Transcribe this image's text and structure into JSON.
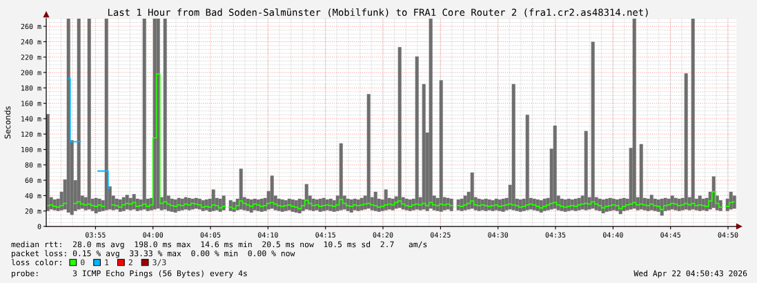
{
  "chart_data": {
    "type": "step",
    "title": "Last 1 Hour from Bad Soden-Salmünster (Mobilfunk) to FRA1 Core Router 2 (fra1.cr2.as48314.net)",
    "ylabel": "Seconds",
    "annotations": [
      "median rtt:  28.0 ms avg  198.0 ms max  14.6 ms min  20.5 ms now  10.5 ms sd  2.7   am/s",
      "packet loss: 0.15 % avg  33.33 % max  0.00 % min  0.00 % now",
      "loss color:",
      "probe:       3 ICMP Echo Pings (56 Bytes) every 4s",
      "Wed Apr 22 04:50:43 2026"
    ],
    "xlim": [
      3.8453,
      4.8453
    ],
    "xticks": [
      {
        "value": 3.9167,
        "label": "03:55"
      },
      {
        "value": 4.0,
        "label": "04:00"
      },
      {
        "value": 4.0833,
        "label": "04:05"
      },
      {
        "value": 4.1667,
        "label": "04:10"
      },
      {
        "value": 4.25,
        "label": "04:15"
      },
      {
        "value": 4.3333,
        "label": "04:20"
      },
      {
        "value": 4.4167,
        "label": "04:25"
      },
      {
        "value": 4.5,
        "label": "04:30"
      },
      {
        "value": 4.5833,
        "label": "04:35"
      },
      {
        "value": 4.6667,
        "label": "04:40"
      },
      {
        "value": 4.75,
        "label": "04:45"
      },
      {
        "value": 4.8333,
        "label": "04:50"
      }
    ],
    "ylim": [
      0,
      270
    ],
    "yticks": [
      0,
      {
        "value": 20,
        "label": "20 m"
      },
      {
        "value": 40,
        "label": "40 m"
      },
      {
        "value": 60,
        "label": "60 m"
      },
      {
        "value": 80,
        "label": "80 m"
      },
      {
        "value": 100,
        "label": "100 m"
      },
      {
        "value": 120,
        "label": "120 m"
      },
      {
        "value": 140,
        "label": "140 m"
      },
      {
        "value": 160,
        "label": "160 m"
      },
      {
        "value": 180,
        "label": "180 m"
      },
      {
        "value": 200,
        "label": "200 m"
      },
      {
        "value": 220,
        "label": "220 m"
      },
      {
        "value": 240,
        "label": "240 m"
      },
      {
        "value": 260,
        "label": "260 m"
      }
    ],
    "grid": true,
    "legend": "bottom",
    "x": [
      3.8475,
      3.8525,
      3.8575,
      3.8625,
      3.8675,
      3.8725,
      3.8775,
      3.8825,
      3.8875,
      3.8925,
      3.8975,
      3.9025,
      3.9075,
      3.9125,
      3.9175,
      3.9225,
      3.9275,
      3.9325,
      3.9375,
      3.9425,
      3.9475,
      3.9525,
      3.9575,
      3.9625,
      3.9675,
      3.9725,
      3.9775,
      3.9825,
      3.9875,
      3.9925,
      3.9975,
      4.0025,
      4.0075,
      4.0125,
      4.0175,
      4.0225,
      4.0275,
      4.0325,
      4.0375,
      4.0425,
      4.0475,
      4.0525,
      4.0575,
      4.0625,
      4.0675,
      4.0725,
      4.0775,
      4.0825,
      4.0875,
      4.0925,
      4.0975,
      4.1025,
      4.1075,
      4.1125,
      4.1175,
      4.1225,
      4.1275,
      4.1325,
      4.1375,
      4.1425,
      4.1475,
      4.1525,
      4.1575,
      4.1625,
      4.1675,
      4.1725,
      4.1775,
      4.1825,
      4.1875,
      4.1925,
      4.1975,
      4.2025,
      4.2075,
      4.2125,
      4.2175,
      4.2225,
      4.2275,
      4.2325,
      4.2375,
      4.2425,
      4.2475,
      4.2525,
      4.2575,
      4.2625,
      4.2675,
      4.2725,
      4.2775,
      4.2825,
      4.2875,
      4.2925,
      4.2975,
      4.3025,
      4.3075,
      4.3125,
      4.3175,
      4.3225,
      4.3275,
      4.3325,
      4.3375,
      4.3425,
      4.3475,
      4.3525,
      4.3575,
      4.3625,
      4.3675,
      4.3725,
      4.3775,
      4.3825,
      4.3875,
      4.3925,
      4.3975,
      4.4025,
      4.4075,
      4.4125,
      4.4175,
      4.4225,
      4.4275,
      4.4325,
      4.4375,
      4.4425,
      4.4475,
      4.4525,
      4.4575,
      4.4625,
      4.4675,
      4.4725,
      4.4775,
      4.4825,
      4.4875,
      4.4925,
      4.4975,
      4.5025,
      4.5075,
      4.5125,
      4.5175,
      4.5225,
      4.5275,
      4.5325,
      4.5375,
      4.5425,
      4.5475,
      4.5525,
      4.5575,
      4.5625,
      4.5675,
      4.5725,
      4.5775,
      4.5825,
      4.5875,
      4.5925,
      4.5975,
      4.6025,
      4.6075,
      4.6125,
      4.6175,
      4.6225,
      4.6275,
      4.6325,
      4.6375,
      4.6425,
      4.6475,
      4.6525,
      4.6575,
      4.6625,
      4.6675,
      4.6725,
      4.6775,
      4.6825,
      4.6875,
      4.6925,
      4.6975,
      4.7025,
      4.7075,
      4.7125,
      4.7175,
      4.7225,
      4.7275,
      4.7325,
      4.7375,
      4.7425,
      4.7475,
      4.7525,
      4.7575,
      4.7625,
      4.7675,
      4.7725,
      4.7775,
      4.7825,
      4.7875,
      4.7925,
      4.7975,
      4.8025,
      4.8075,
      4.8125,
      4.8175,
      4.8225,
      4.8275,
      4.8325,
      4.8375,
      4.8425
    ],
    "series": [
      {
        "type": "bar",
        "color": "#6e6e6e",
        "base": [
          20,
          22,
          21,
          20,
          21,
          22,
          18,
          15,
          20,
          22,
          23,
          21,
          22,
          20,
          17,
          19,
          20,
          21,
          22,
          21,
          22,
          19,
          20,
          22,
          21,
          22,
          20,
          21,
          22,
          20,
          21,
          22,
          23,
          21,
          22,
          20,
          19,
          18,
          20,
          21,
          22,
          21,
          22,
          23,
          22,
          20,
          21,
          19,
          20,
          21,
          19,
          21,
          null,
          20,
          19,
          21,
          22,
          21,
          20,
          18,
          21,
          20,
          19,
          20,
          22,
          23,
          21,
          20,
          19,
          20,
          21,
          19,
          18,
          17,
          20,
          22,
          21,
          20,
          21,
          19,
          20,
          21,
          20,
          19,
          20,
          21,
          22,
          20,
          18,
          21,
          20,
          21,
          22,
          23,
          21,
          20,
          19,
          20,
          21,
          22,
          21,
          23,
          24,
          22,
          21,
          20,
          21,
          22,
          21,
          22,
          20,
          23,
          21,
          20,
          19,
          21,
          22,
          20,
          null,
          21,
          20,
          21,
          22,
          23,
          21,
          20,
          21,
          20,
          21,
          20,
          21,
          20,
          19,
          21,
          22,
          21,
          20,
          19,
          20,
          21,
          22,
          21,
          20,
          18,
          20,
          21,
          22,
          23,
          21,
          20,
          19,
          20,
          21,
          20,
          21,
          22,
          21,
          22,
          23,
          21,
          20,
          17,
          19,
          20,
          21,
          20,
          16,
          20,
          21,
          22,
          23,
          21,
          22,
          21,
          20,
          21,
          20,
          19,
          14,
          20,
          21,
          22,
          21,
          20,
          21,
          22,
          21,
          22,
          21,
          20,
          21,
          20,
          22,
          24,
          21,
          20,
          null,
          20,
          22,
          23
        ],
        "values": [
          126,
          16,
          14,
          16,
          24,
          39,
          252,
          97,
          40,
          248,
          17,
          17,
          248,
          16,
          20,
          17,
          14,
          249,
          30,
          19,
          14,
          16,
          18,
          19,
          16,
          20,
          16,
          14,
          248,
          16,
          16,
          248,
          247,
          17,
          248,
          20,
          17,
          17,
          17,
          15,
          16,
          16,
          14,
          14,
          14,
          14,
          14,
          17,
          28,
          16,
          17,
          19,
          null,
          14,
          13,
          15,
          53,
          17,
          16,
          17,
          15,
          15,
          17,
          17,
          24,
          43,
          19,
          16,
          16,
          14,
          15,
          16,
          16,
          19,
          15,
          33,
          19,
          16,
          14,
          17,
          17,
          14,
          16,
          15,
          20,
          87,
          18,
          16,
          17,
          15,
          15,
          16,
          18,
          149,
          17,
          25,
          17,
          15,
          27,
          15,
          15,
          16,
          209,
          16,
          15,
          15,
          15,
          199,
          17,
          163,
          102,
          247,
          19,
          17,
          171,
          17,
          15,
          16,
          null,
          14,
          16,
          19,
          23,
          47,
          17,
          16,
          14,
          16,
          14,
          14,
          15,
          15,
          17,
          16,
          32,
          164,
          16,
          16,
          16,
          124,
          15,
          15,
          15,
          16,
          16,
          16,
          79,
          108,
          19,
          16,
          16,
          16,
          14,
          16,
          16,
          18,
          103,
          16,
          217,
          17,
          16,
          18,
          17,
          17,
          15,
          15,
          20,
          17,
          15,
          80,
          247,
          17,
          85,
          16,
          16,
          20,
          16,
          16,
          22,
          17,
          15,
          18,
          16,
          16,
          16,
          177,
          17,
          248,
          15,
          20,
          15,
          17,
          23,
          41,
          19,
          14,
          null,
          16,
          23,
          17
        ]
      },
      {
        "name": "0",
        "color": "#26ff00",
        "values": [
          27,
          28,
          26,
          25,
          27,
          30,
          null,
          null,
          30,
          32,
          29,
          28,
          29,
          27,
          26,
          28,
          26,
          null,
          null,
          28,
          27,
          25,
          28,
          30,
          29,
          31,
          26,
          27,
          29,
          26,
          28,
          115,
          198,
          30,
          32,
          29,
          27,
          26,
          28,
          27,
          29,
          28,
          30,
          29,
          28,
          25,
          26,
          25,
          28,
          27,
          24,
          26,
          null,
          25,
          23,
          27,
          33,
          30,
          28,
          26,
          29,
          28,
          26,
          27,
          30,
          31,
          29,
          27,
          26,
          27,
          28,
          26,
          25,
          23,
          27,
          34,
          30,
          27,
          28,
          26,
          27,
          28,
          27,
          26,
          28,
          35,
          30,
          27,
          26,
          28,
          27,
          28,
          29,
          30,
          28,
          27,
          25,
          26,
          28,
          29,
          28,
          31,
          33,
          29,
          27,
          26,
          28,
          29,
          28,
          30,
          27,
          31,
          28,
          27,
          29,
          28,
          29,
          27,
          null,
          27,
          26,
          28,
          30,
          33,
          28,
          27,
          28,
          27,
          26,
          27,
          28,
          26,
          27,
          28,
          29,
          28,
          27,
          25,
          26,
          28,
          29,
          28,
          26,
          24,
          26,
          28,
          30,
          31,
          28,
          26,
          25,
          26,
          27,
          26,
          28,
          29,
          30,
          29,
          32,
          29,
          27,
          24,
          26,
          27,
          28,
          27,
          23,
          26,
          28,
          29,
          31,
          28,
          29,
          28,
          27,
          29,
          27,
          26,
          22,
          27,
          28,
          30,
          29,
          27,
          28,
          30,
          28,
          30,
          27,
          28,
          27,
          26,
          33,
          45,
          30,
          25,
          null,
          26,
          31,
          32
        ]
      },
      {
        "name": "1",
        "color": "#00b8ff",
        "x": [
          3.8775,
          3.8825,
          3.9075,
          3.9325,
          3.9375
        ],
        "values": [
          192,
          110,
          null,
          72,
          50
        ]
      },
      {
        "name": "2",
        "color": "#ff0000",
        "values": [
          null,
          null,
          null,
          null,
          null,
          null,
          null,
          null,
          null,
          null,
          null,
          null,
          null,
          null,
          null,
          null,
          null,
          null,
          null,
          null,
          null,
          null,
          null,
          null,
          null,
          null,
          null,
          null,
          null,
          null,
          null,
          null,
          null,
          null,
          null,
          null,
          null,
          null,
          null,
          null,
          null,
          null,
          null,
          null,
          null,
          null,
          null,
          null,
          null,
          null,
          null,
          null,
          null,
          null,
          null,
          null,
          null,
          null,
          null,
          null,
          null,
          null,
          null,
          null,
          null,
          null,
          null,
          null,
          null,
          null,
          null,
          null,
          null,
          null,
          null,
          null,
          null,
          null,
          null,
          null,
          null,
          null,
          null,
          null,
          null,
          null,
          null,
          null,
          null,
          null,
          null,
          null,
          null,
          null,
          null,
          null,
          null,
          null,
          null,
          null,
          null,
          null,
          null,
          null,
          null,
          null,
          null,
          null,
          null,
          null,
          null,
          null,
          null,
          null,
          null,
          null,
          null,
          null,
          null,
          null,
          null,
          null,
          null,
          null,
          null,
          null,
          null,
          null,
          null,
          null,
          null,
          null,
          null,
          null,
          null,
          null,
          null,
          null,
          null,
          null,
          null,
          null,
          null,
          null,
          null,
          null,
          null,
          null,
          null,
          null,
          null,
          null,
          null,
          null,
          null,
          null,
          null,
          null,
          null,
          null,
          null,
          null,
          null,
          null,
          null,
          null,
          null,
          null,
          null,
          null,
          null,
          null,
          null,
          null,
          null,
          null,
          null,
          null,
          null,
          null,
          null,
          null,
          null,
          null,
          null,
          null,
          null,
          null,
          null,
          null,
          null,
          null,
          null,
          null,
          null,
          null,
          null,
          null,
          null,
          null
        ]
      },
      {
        "name": "3/3",
        "color": "#a00000",
        "values": [
          null,
          null,
          null,
          null,
          null,
          null,
          null,
          null,
          null,
          null,
          null,
          null,
          null,
          null,
          null,
          null,
          null,
          null,
          null,
          null,
          null,
          null,
          null,
          null,
          null,
          null,
          null,
          null,
          null,
          null,
          null,
          null,
          null,
          null,
          null,
          null,
          null,
          null,
          null,
          null,
          null,
          null,
          null,
          null,
          null,
          null,
          null,
          null,
          null,
          null,
          null,
          null,
          null,
          null,
          null,
          null,
          null,
          null,
          null,
          null,
          null,
          null,
          null,
          null,
          null,
          null,
          null,
          null,
          null,
          null,
          null,
          null,
          null,
          null,
          null,
          null,
          null,
          null,
          null,
          null,
          null,
          null,
          null,
          null,
          null,
          null,
          null,
          null,
          null,
          null,
          null,
          null,
          null,
          null,
          null,
          null,
          null,
          null,
          null,
          null,
          null,
          null,
          null,
          null,
          null,
          null,
          null,
          null,
          null,
          null,
          null,
          null,
          null,
          null,
          null,
          null,
          null,
          null,
          null,
          null,
          null,
          null,
          null,
          null,
          null,
          null,
          null,
          null,
          null,
          null,
          null,
          null,
          null,
          null,
          null,
          null,
          null,
          null,
          null,
          null,
          null,
          null,
          null,
          null,
          null,
          null,
          null,
          null,
          null,
          null,
          null,
          null,
          null,
          null,
          null,
          null,
          null,
          null,
          null,
          null,
          null,
          null,
          null,
          null,
          null,
          null,
          null,
          null,
          null,
          null,
          null,
          null,
          null,
          null,
          null,
          null,
          null,
          null,
          null,
          null,
          null,
          null,
          null,
          null,
          null,
          null,
          null,
          null,
          null,
          null,
          null,
          null,
          null,
          null,
          null,
          null,
          null,
          null,
          null,
          null
        ]
      }
    ]
  }
}
